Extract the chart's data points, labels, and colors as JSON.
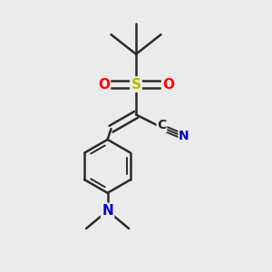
{
  "background_color": "#ebebeb",
  "bond_color": "#2a2a2a",
  "bond_width": 1.8,
  "atom_colors": {
    "S": "#b8b800",
    "O": "#ff0000",
    "N_blue": "#0000cc",
    "C": "#2a2a2a"
  },
  "font_size_atoms": 11,
  "font_size_cn": 10,
  "fig_width": 3.0,
  "fig_height": 3.0,
  "dpi": 100
}
